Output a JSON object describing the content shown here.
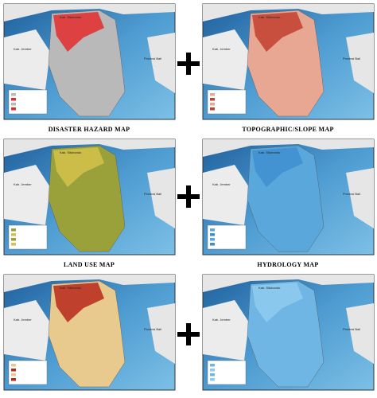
{
  "maps": [
    {
      "caption": "DISASTER HAZARD MAP",
      "labels": [
        "Kab. Situbondo",
        "Kab. Jember",
        "Provinsi Bali"
      ]
    },
    {
      "caption": "TOPOGRAPHIC/SLOPE MAP",
      "labels": [
        "Kab. Situbondo",
        "Kab. Jember",
        "Provinsi Bali"
      ]
    },
    {
      "caption": "LAND USE MAP",
      "labels": [
        "Kab. Situbondo",
        "Kab. Jember",
        "Provinsi Bali"
      ]
    },
    {
      "caption": "HYDROLOGY MAP",
      "labels": [
        "Kab. Situbondo",
        "Kab. Jember",
        "Provinsi Bali"
      ]
    },
    {
      "labels": [
        "Kab. Situbondo",
        "Kab. Jember",
        "Provinsi Bali"
      ]
    },
    {
      "labels": [
        "Kab. Situbondo",
        "Kab. Jember",
        "Provinsi Bali"
      ]
    }
  ]
}
